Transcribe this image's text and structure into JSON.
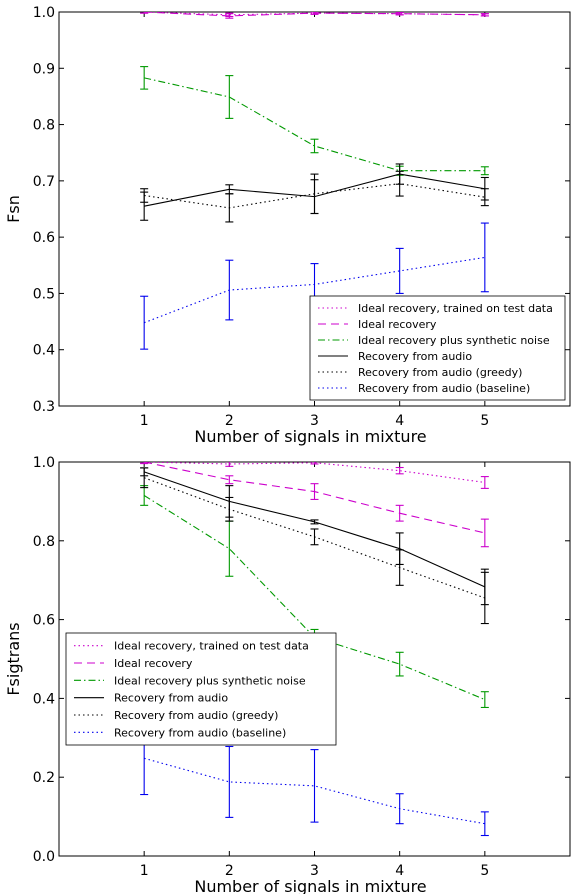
{
  "chart_data": [
    {
      "type": "line",
      "xlabel": "Number of signals in mixture",
      "ylabel": "Fsn",
      "xlim": [
        0,
        6
      ],
      "ylim": [
        0.3,
        1.0
      ],
      "xticks": [
        1,
        2,
        3,
        4,
        5
      ],
      "yticks": [
        0.3,
        0.4,
        0.5,
        0.6,
        0.7,
        0.8,
        0.9,
        1.0
      ],
      "ytick_labels": [
        "0.3",
        "0.4",
        "0.5",
        "0.6",
        "0.7",
        "0.8",
        "0.9",
        "1.0"
      ],
      "legend": "lower-right",
      "x": [
        1,
        2,
        3,
        4,
        5
      ],
      "series": [
        {
          "name": "Ideal recovery, trained on test data",
          "color": "#cc00cc",
          "style": "dotted",
          "values": [
            1.0,
            0.995,
            0.998,
            0.997,
            0.995
          ],
          "errors": [
            0.002,
            0.003,
            0.002,
            0.002,
            0.002
          ]
        },
        {
          "name": "Ideal recovery",
          "color": "#cc00cc",
          "style": "dashed",
          "values": [
            1.0,
            0.993,
            0.998,
            0.997,
            0.995
          ],
          "errors": [
            0.002,
            0.004,
            0.002,
            0.002,
            0.002
          ]
        },
        {
          "name": "Ideal recovery plus synthetic noise",
          "color": "#009900",
          "style": "dashdot",
          "values": [
            0.883,
            0.849,
            0.762,
            0.718,
            0.718
          ],
          "errors": [
            0.02,
            0.038,
            0.012,
            0.008,
            0.007
          ]
        },
        {
          "name": "Recovery from audio",
          "color": "#000000",
          "style": "solid",
          "values": [
            0.655,
            0.685,
            0.672,
            0.712,
            0.686
          ],
          "errors": [
            0.025,
            0.008,
            0.03,
            0.018,
            0.02
          ]
        },
        {
          "name": "Recovery from audio (greedy)",
          "color": "#000000",
          "style": "dotted",
          "values": [
            0.674,
            0.652,
            0.677,
            0.695,
            0.671
          ],
          "errors": [
            0.012,
            0.025,
            0.035,
            0.022,
            0.015
          ]
        },
        {
          "name": "Recovery from audio (baseline)",
          "color": "#0000ee",
          "style": "dotted",
          "values": [
            0.448,
            0.506,
            0.516,
            0.54,
            0.564
          ],
          "errors": [
            0.047,
            0.053,
            0.037,
            0.04,
            0.061
          ]
        }
      ]
    },
    {
      "type": "line",
      "xlabel": "Number of signals in mixture",
      "ylabel": "Fsigtrans",
      "xlim": [
        0,
        6
      ],
      "ylim": [
        0.0,
        1.0
      ],
      "xticks": [
        1,
        2,
        3,
        4,
        5
      ],
      "yticks": [
        0.0,
        0.2,
        0.4,
        0.6,
        0.8,
        1.0
      ],
      "ytick_labels": [
        "0.0",
        "0.2",
        "0.4",
        "0.6",
        "0.8",
        "1.0"
      ],
      "legend": "center-left",
      "x": [
        1,
        2,
        3,
        4,
        5
      ],
      "series": [
        {
          "name": "Ideal recovery, trained on test data",
          "color": "#cc00cc",
          "style": "dotted",
          "values": [
            1.0,
            0.995,
            0.998,
            0.978,
            0.948
          ],
          "errors": [
            0.003,
            0.006,
            0.003,
            0.008,
            0.015
          ]
        },
        {
          "name": "Ideal recovery",
          "color": "#cc00cc",
          "style": "dashed",
          "values": [
            1.0,
            0.955,
            0.925,
            0.87,
            0.82
          ],
          "errors": [
            0.004,
            0.01,
            0.02,
            0.02,
            0.035
          ]
        },
        {
          "name": "Ideal recovery plus synthetic noise",
          "color": "#009900",
          "style": "dashdot",
          "values": [
            0.915,
            0.78,
            0.555,
            0.487,
            0.397
          ],
          "errors": [
            0.025,
            0.07,
            0.02,
            0.03,
            0.02
          ]
        },
        {
          "name": "Recovery from audio",
          "color": "#000000",
          "style": "solid",
          "values": [
            0.975,
            0.9,
            0.848,
            0.78,
            0.683
          ],
          "errors": [
            0.01,
            0.04,
            0.005,
            0.04,
            0.045
          ]
        },
        {
          "name": "Recovery from audio (greedy)",
          "color": "#000000",
          "style": "dotted",
          "values": [
            0.96,
            0.88,
            0.81,
            0.732,
            0.655
          ],
          "errors": [
            0.025,
            0.03,
            0.02,
            0.045,
            0.065
          ]
        },
        {
          "name": "Recovery from audio (baseline)",
          "color": "#0000ee",
          "style": "dotted",
          "values": [
            0.248,
            0.188,
            0.178,
            0.12,
            0.082
          ],
          "errors": [
            0.092,
            0.09,
            0.092,
            0.038,
            0.03
          ]
        }
      ]
    }
  ]
}
